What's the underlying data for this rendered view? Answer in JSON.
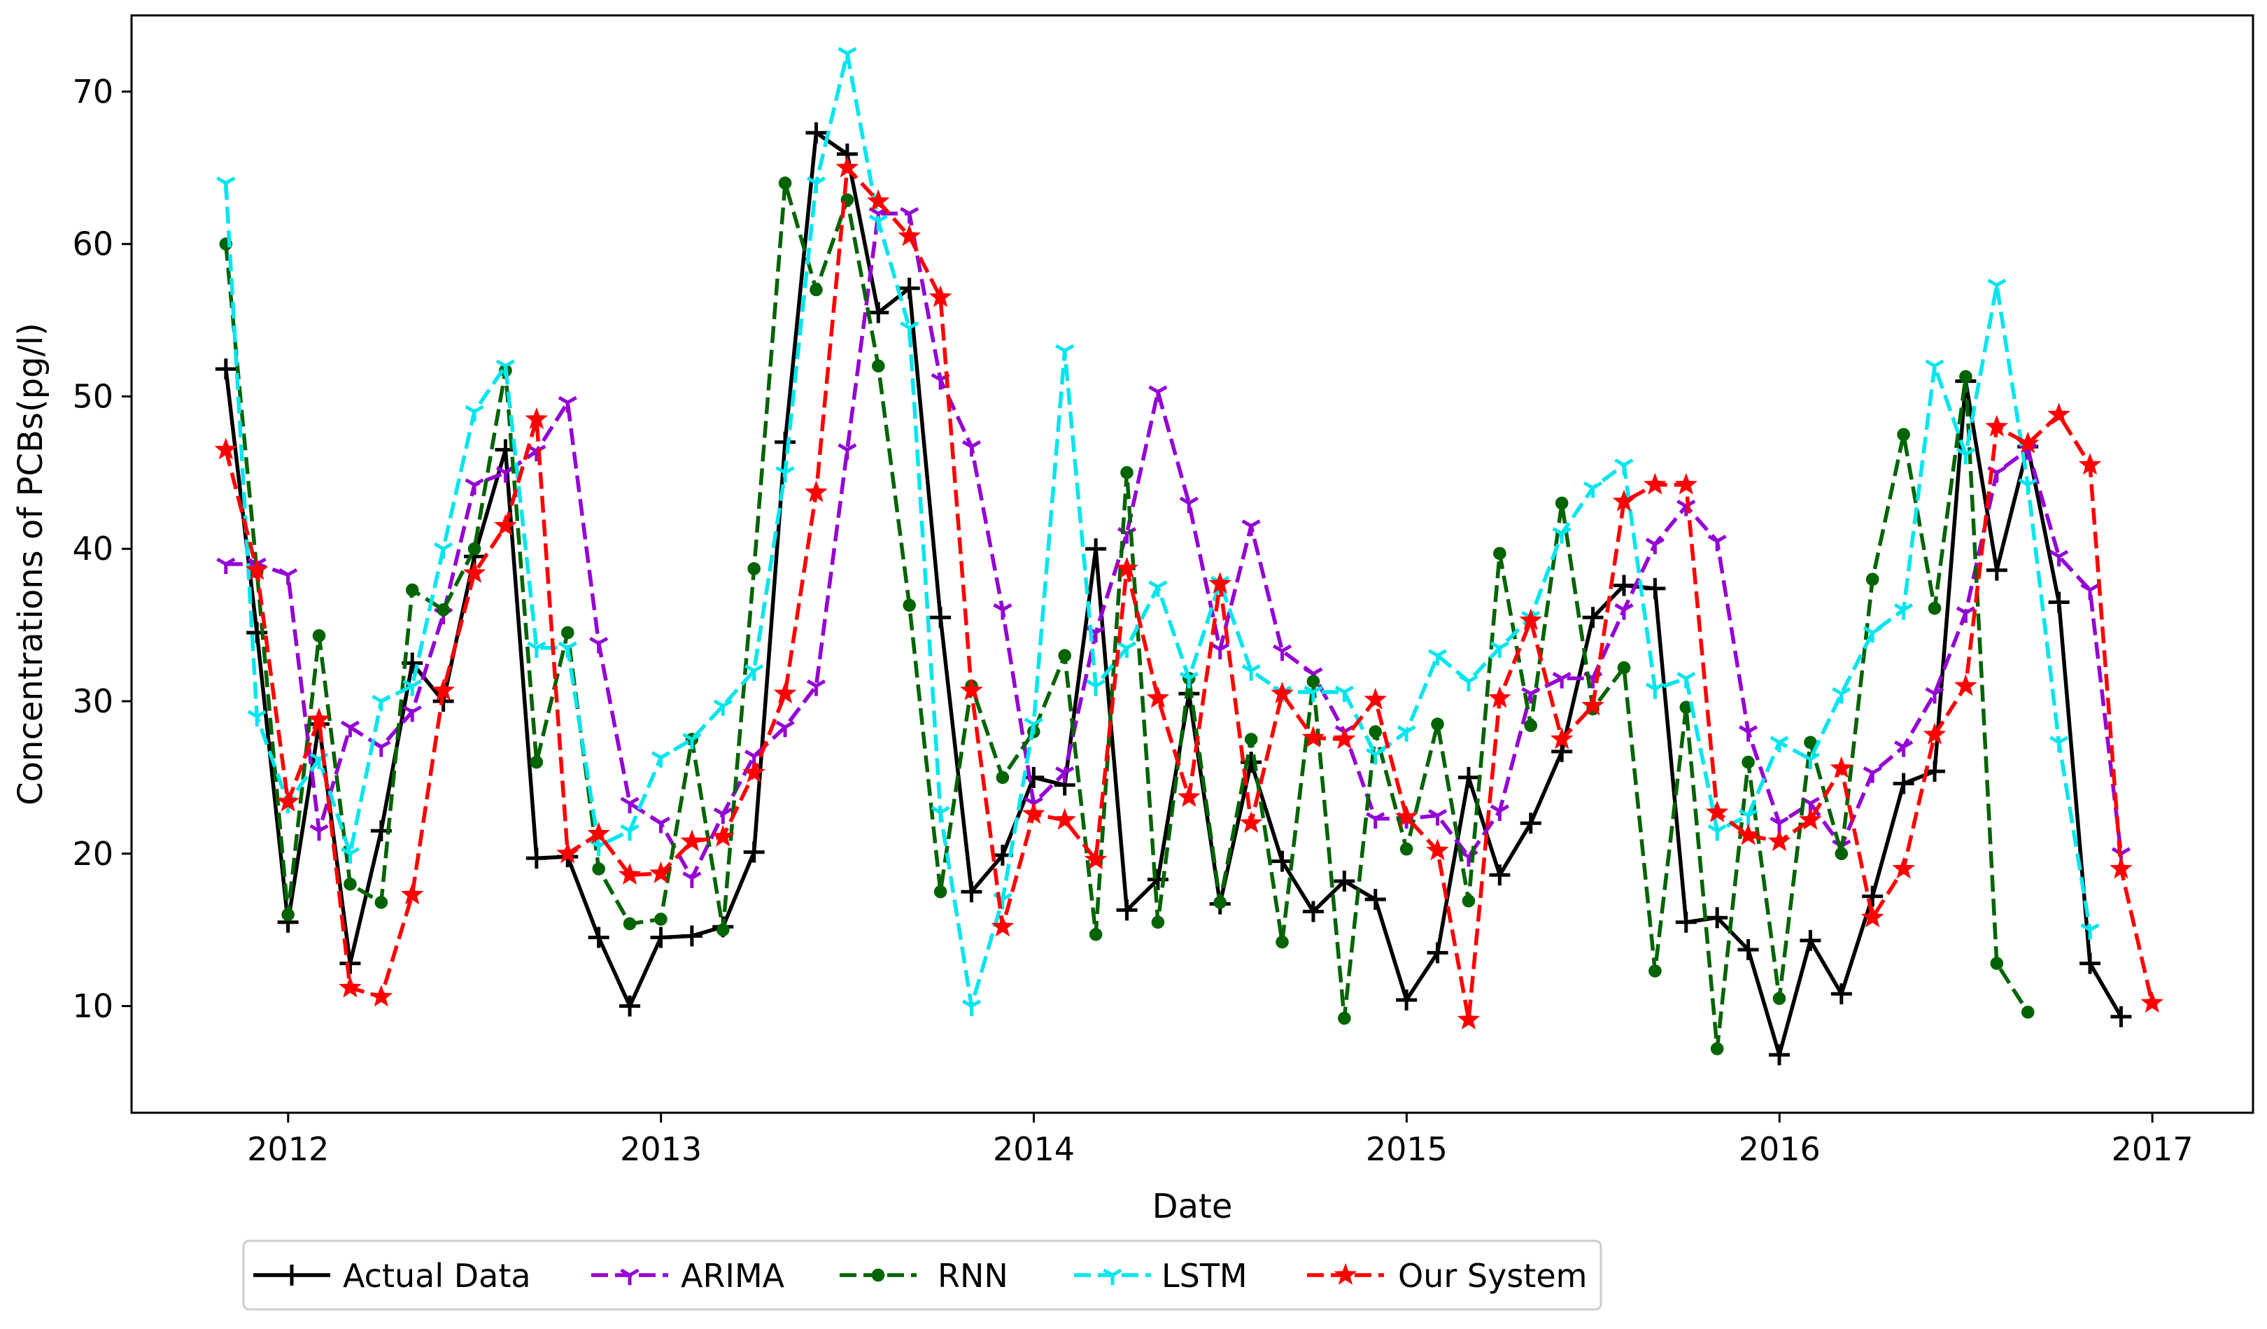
{
  "chart_data": {
    "type": "line",
    "title": "",
    "xlabel": "Date",
    "ylabel": "Concentrations of PCBs(pg/l)",
    "xlim": [
      2011.58,
      2017.27
    ],
    "ylim": [
      3.0,
      75.0
    ],
    "x_ticks": [
      {
        "value": 2012,
        "label": "2012"
      },
      {
        "value": 2013,
        "label": "2013"
      },
      {
        "value": 2014,
        "label": "2014"
      },
      {
        "value": 2015,
        "label": "2015"
      },
      {
        "value": 2016,
        "label": "2016"
      },
      {
        "value": 2017,
        "label": "2017"
      }
    ],
    "y_ticks": [
      {
        "value": 10,
        "label": "10"
      },
      {
        "value": 20,
        "label": "20"
      },
      {
        "value": 30,
        "label": "30"
      },
      {
        "value": 40,
        "label": "40"
      },
      {
        "value": 50,
        "label": "50"
      },
      {
        "value": 60,
        "label": "60"
      },
      {
        "value": 70,
        "label": "70"
      }
    ],
    "x_start": 2011.833,
    "x_step": 0.08333,
    "legend_position": "bottom",
    "series": [
      {
        "name": "Actual Data",
        "color": "#000000",
        "dashed": false,
        "marker": "plus",
        "values": [
          51.8,
          34.5,
          15.5,
          28.5,
          12.8,
          21.5,
          32.5,
          30.0,
          39.5,
          46.5,
          19.7,
          19.8,
          14.5,
          10.0,
          14.5,
          14.6,
          15.2,
          20.1,
          47.0,
          67.3,
          65.9,
          55.5,
          57.1,
          35.5,
          17.5,
          19.9,
          25.0,
          24.5,
          40.0,
          16.3,
          18.3,
          30.5,
          16.7,
          26.0,
          19.5,
          16.2,
          18.2,
          17.0,
          10.4,
          13.5,
          25.0,
          18.6,
          22.0,
          26.7,
          35.5,
          37.6,
          37.4,
          15.5,
          15.8,
          13.7,
          6.8,
          14.3,
          10.8,
          17.2,
          24.6,
          25.4,
          51.0,
          38.6,
          46.7,
          36.5,
          12.8,
          9.3
        ]
      },
      {
        "name": "ARIMA",
        "color": "#9400d3",
        "dashed": true,
        "marker": "tri",
        "values": [
          39.0,
          39.0,
          38.3,
          21.5,
          28.3,
          27.0,
          29.3,
          35.7,
          44.2,
          45.0,
          46.4,
          49.6,
          33.8,
          23.3,
          22.0,
          18.4,
          22.6,
          26.4,
          28.3,
          31.0,
          46.5,
          62.0,
          62.0,
          51.1,
          46.7,
          36.0,
          23.3,
          25.3,
          34.5,
          41.0,
          50.3,
          43.0,
          33.4,
          41.5,
          33.3,
          31.8,
          28.0,
          22.3,
          22.3,
          22.5,
          19.8,
          22.8,
          30.5,
          31.5,
          31.5,
          36.0,
          40.3,
          42.8,
          40.5,
          28.0,
          22.0,
          23.3,
          20.5,
          25.3,
          27.0,
          30.5,
          35.8,
          45.0,
          46.5,
          39.5,
          37.3,
          20.0
        ]
      },
      {
        "name": "RNN",
        "color": "#006400",
        "dashed": true,
        "marker": "dot",
        "values": [
          60.0,
          38.5,
          16.0,
          34.3,
          18.0,
          16.8,
          37.3,
          36.0,
          40.0,
          51.7,
          26.0,
          34.5,
          19.0,
          15.4,
          15.7,
          27.5,
          15.0,
          38.7,
          64.0,
          57.0,
          62.9,
          52.0,
          36.3,
          17.5,
          31.0,
          25.0,
          28.0,
          33.0,
          14.7,
          45.0,
          15.5,
          31.5,
          16.8,
          27.5,
          14.2,
          31.3,
          9.2,
          28.0,
          20.3,
          28.5,
          16.9,
          39.7,
          28.4,
          43.0,
          29.5,
          32.2,
          12.3,
          29.6,
          7.2,
          26.0,
          10.5,
          27.3,
          20.0,
          38.0,
          47.5,
          36.1,
          51.3,
          12.8,
          9.6
        ]
      },
      {
        "name": "LSTM",
        "color": "#00e5ee",
        "dashed": true,
        "marker": "tri",
        "values": [
          64.0,
          29.0,
          23.3,
          26.2,
          20.0,
          30.0,
          31.0,
          40.0,
          49.0,
          52.0,
          33.5,
          33.5,
          20.5,
          21.5,
          26.3,
          27.5,
          29.7,
          32.0,
          45.0,
          64.0,
          72.5,
          61.5,
          54.5,
          22.7,
          10.0,
          17.0,
          28.5,
          53.0,
          31.0,
          33.5,
          37.5,
          31.5,
          37.8,
          32.0,
          30.6,
          30.6,
          30.6,
          26.5,
          28.0,
          33.0,
          31.3,
          33.5,
          35.5,
          41.0,
          44.0,
          45.5,
          30.8,
          31.5,
          21.5,
          22.5,
          27.3,
          26.2,
          30.5,
          34.5,
          36.0,
          52.0,
          46.2,
          57.3,
          44.2,
          27.3,
          15.0
        ]
      },
      {
        "name": "Our System",
        "color": "#ff0000",
        "dashed": true,
        "marker": "star",
        "values": [
          46.5,
          38.6,
          23.4,
          28.8,
          11.2,
          10.6,
          17.3,
          30.7,
          38.4,
          41.5,
          48.5,
          20.0,
          21.3,
          18.6,
          18.7,
          20.8,
          21.1,
          25.3,
          30.5,
          43.7,
          65.0,
          62.8,
          60.5,
          56.5,
          30.7,
          15.2,
          22.6,
          22.2,
          19.6,
          38.7,
          30.2,
          23.7,
          37.7,
          22.0,
          30.5,
          27.6,
          27.5,
          30.1,
          22.4,
          20.2,
          9.1,
          30.2,
          35.3,
          27.5,
          29.7,
          43.1,
          44.2,
          44.2,
          22.7,
          21.2,
          20.8,
          22.2,
          25.6,
          15.8,
          19.0,
          27.8,
          31.0,
          48.0,
          46.9,
          48.8,
          45.5,
          19.0,
          10.2
        ]
      }
    ]
  }
}
